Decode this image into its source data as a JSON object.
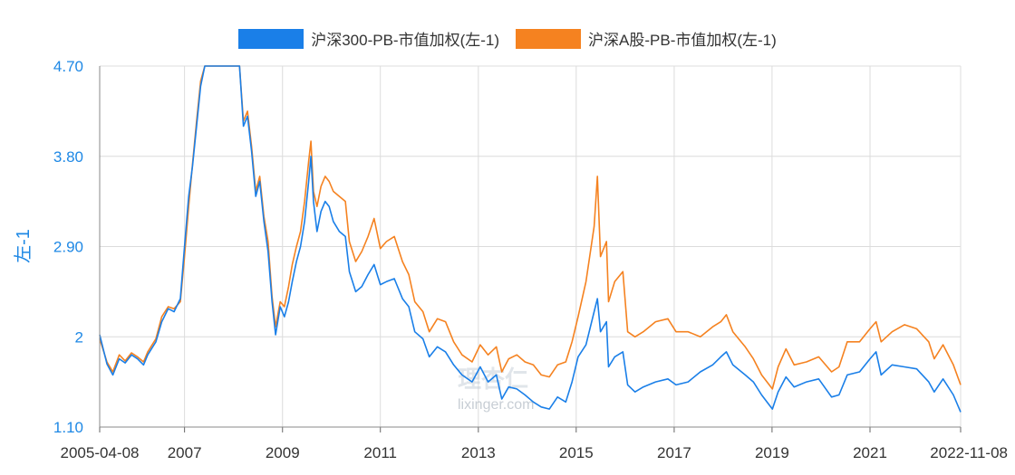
{
  "chart_data": {
    "type": "line",
    "ylabel": "左-1",
    "yticks": [
      "4.70",
      "3.80",
      "2.90",
      "2",
      "1.10"
    ],
    "ytick_values": [
      4.7,
      3.8,
      2.9,
      2.0,
      1.1
    ],
    "ylim": [
      1.1,
      4.7
    ],
    "xlim": [
      "2005-04-08",
      "2022-11-08"
    ],
    "xticks": [
      {
        "label": "2005-04-08",
        "value": "2005-04-08"
      },
      {
        "label": "2007",
        "value": "2007-01-01"
      },
      {
        "label": "2009",
        "value": "2009-01-01"
      },
      {
        "label": "2011",
        "value": "2011-01-01"
      },
      {
        "label": "2013",
        "value": "2013-01-01"
      },
      {
        "label": "2015",
        "value": "2015-01-01"
      },
      {
        "label": "2017",
        "value": "2017-01-01"
      },
      {
        "label": "2019",
        "value": "2019-01-01"
      },
      {
        "label": "2021",
        "value": "2021-01-01"
      },
      {
        "label": "2022-11-08",
        "value": "2022-11-08"
      }
    ],
    "grid": true,
    "legend_position": "top-center",
    "series": [
      {
        "name": "沪深300-PB-市值加权(左-1)",
        "color": "#1a7fe8",
        "points": [
          [
            "2005-04-08",
            2.02
          ],
          [
            "2005-06-01",
            1.73
          ],
          [
            "2005-07-15",
            1.62
          ],
          [
            "2005-09-01",
            1.78
          ],
          [
            "2005-10-15",
            1.74
          ],
          [
            "2005-12-01",
            1.82
          ],
          [
            "2006-01-15",
            1.78
          ],
          [
            "2006-03-01",
            1.72
          ],
          [
            "2006-04-01",
            1.82
          ],
          [
            "2006-06-01",
            1.95
          ],
          [
            "2006-07-15",
            2.15
          ],
          [
            "2006-09-01",
            2.28
          ],
          [
            "2006-10-15",
            2.25
          ],
          [
            "2006-12-01",
            2.38
          ],
          [
            "2007-01-01",
            2.9
          ],
          [
            "2007-02-01",
            3.4
          ],
          [
            "2007-03-01",
            3.7
          ],
          [
            "2007-04-01",
            4.1
          ],
          [
            "2007-05-01",
            4.5
          ],
          [
            "2007-06-01",
            4.7
          ],
          [
            "2007-08-01",
            4.7
          ],
          [
            "2007-10-01",
            4.7
          ],
          [
            "2007-12-01",
            4.7
          ],
          [
            "2008-02-15",
            4.7
          ],
          [
            "2008-03-15",
            4.1
          ],
          [
            "2008-04-15",
            4.2
          ],
          [
            "2008-05-15",
            3.85
          ],
          [
            "2008-06-15",
            3.4
          ],
          [
            "2008-07-15",
            3.55
          ],
          [
            "2008-08-15",
            3.15
          ],
          [
            "2008-09-15",
            2.85
          ],
          [
            "2008-10-15",
            2.35
          ],
          [
            "2008-11-10",
            2.02
          ],
          [
            "2008-12-15",
            2.3
          ],
          [
            "2009-01-15",
            2.2
          ],
          [
            "2009-02-15",
            2.35
          ],
          [
            "2009-03-15",
            2.55
          ],
          [
            "2009-04-15",
            2.75
          ],
          [
            "2009-05-15",
            2.9
          ],
          [
            "2009-06-15",
            3.15
          ],
          [
            "2009-07-15",
            3.55
          ],
          [
            "2009-08-01",
            3.8
          ],
          [
            "2009-08-20",
            3.35
          ],
          [
            "2009-09-15",
            3.05
          ],
          [
            "2009-10-15",
            3.25
          ],
          [
            "2009-11-15",
            3.35
          ],
          [
            "2009-12-15",
            3.3
          ],
          [
            "2010-01-15",
            3.15
          ],
          [
            "2010-03-01",
            3.05
          ],
          [
            "2010-04-15",
            3.0
          ],
          [
            "2010-05-15",
            2.65
          ],
          [
            "2010-07-01",
            2.45
          ],
          [
            "2010-08-15",
            2.5
          ],
          [
            "2010-10-01",
            2.62
          ],
          [
            "2010-11-15",
            2.72
          ],
          [
            "2011-01-01",
            2.52
          ],
          [
            "2011-02-15",
            2.55
          ],
          [
            "2011-04-15",
            2.58
          ],
          [
            "2011-06-15",
            2.38
          ],
          [
            "2011-08-01",
            2.3
          ],
          [
            "2011-09-15",
            2.05
          ],
          [
            "2011-11-15",
            1.98
          ],
          [
            "2012-01-01",
            1.8
          ],
          [
            "2012-03-01",
            1.9
          ],
          [
            "2012-05-01",
            1.85
          ],
          [
            "2012-07-01",
            1.72
          ],
          [
            "2012-09-01",
            1.62
          ],
          [
            "2012-11-15",
            1.55
          ],
          [
            "2013-01-15",
            1.7
          ],
          [
            "2013-03-15",
            1.55
          ],
          [
            "2013-05-15",
            1.62
          ],
          [
            "2013-06-25",
            1.38
          ],
          [
            "2013-08-15",
            1.5
          ],
          [
            "2013-10-15",
            1.48
          ],
          [
            "2013-12-15",
            1.42
          ],
          [
            "2014-02-15",
            1.35
          ],
          [
            "2014-04-15",
            1.3
          ],
          [
            "2014-06-15",
            1.28
          ],
          [
            "2014-08-15",
            1.4
          ],
          [
            "2014-10-15",
            1.35
          ],
          [
            "2014-12-01",
            1.55
          ],
          [
            "2015-01-15",
            1.8
          ],
          [
            "2015-03-15",
            1.92
          ],
          [
            "2015-05-15",
            2.25
          ],
          [
            "2015-06-08",
            2.38
          ],
          [
            "2015-07-01",
            2.05
          ],
          [
            "2015-08-15",
            2.15
          ],
          [
            "2015-08-30",
            1.7
          ],
          [
            "2015-10-15",
            1.8
          ],
          [
            "2015-12-15",
            1.85
          ],
          [
            "2016-01-20",
            1.52
          ],
          [
            "2016-03-15",
            1.45
          ],
          [
            "2016-05-15",
            1.5
          ],
          [
            "2016-08-15",
            1.55
          ],
          [
            "2016-11-15",
            1.58
          ],
          [
            "2017-01-15",
            1.52
          ],
          [
            "2017-04-15",
            1.55
          ],
          [
            "2017-07-15",
            1.65
          ],
          [
            "2017-10-15",
            1.72
          ],
          [
            "2017-12-15",
            1.8
          ],
          [
            "2018-01-25",
            1.85
          ],
          [
            "2018-03-15",
            1.72
          ],
          [
            "2018-06-15",
            1.62
          ],
          [
            "2018-08-15",
            1.55
          ],
          [
            "2018-10-15",
            1.42
          ],
          [
            "2019-01-04",
            1.28
          ],
          [
            "2019-02-15",
            1.45
          ],
          [
            "2019-04-15",
            1.6
          ],
          [
            "2019-06-15",
            1.5
          ],
          [
            "2019-09-15",
            1.55
          ],
          [
            "2019-12-15",
            1.58
          ],
          [
            "2020-03-20",
            1.4
          ],
          [
            "2020-05-15",
            1.42
          ],
          [
            "2020-07-15",
            1.62
          ],
          [
            "2020-10-15",
            1.65
          ],
          [
            "2021-01-01",
            1.78
          ],
          [
            "2021-02-15",
            1.85
          ],
          [
            "2021-03-25",
            1.62
          ],
          [
            "2021-06-15",
            1.72
          ],
          [
            "2021-09-15",
            1.7
          ],
          [
            "2021-12-15",
            1.68
          ],
          [
            "2022-03-15",
            1.55
          ],
          [
            "2022-04-25",
            1.45
          ],
          [
            "2022-06-30",
            1.58
          ],
          [
            "2022-09-15",
            1.42
          ],
          [
            "2022-11-08",
            1.25
          ]
        ]
      },
      {
        "name": "沪深A股-PB-市值加权(左-1)",
        "color": "#f58220",
        "points": [
          [
            "2005-04-08",
            1.98
          ],
          [
            "2005-06-01",
            1.75
          ],
          [
            "2005-07-15",
            1.65
          ],
          [
            "2005-09-01",
            1.82
          ],
          [
            "2005-10-15",
            1.76
          ],
          [
            "2005-12-01",
            1.84
          ],
          [
            "2006-01-15",
            1.8
          ],
          [
            "2006-03-01",
            1.75
          ],
          [
            "2006-04-01",
            1.85
          ],
          [
            "2006-06-01",
            1.98
          ],
          [
            "2006-07-15",
            2.2
          ],
          [
            "2006-09-01",
            2.3
          ],
          [
            "2006-10-15",
            2.28
          ],
          [
            "2006-12-01",
            2.35
          ],
          [
            "2007-01-01",
            2.8
          ],
          [
            "2007-02-01",
            3.3
          ],
          [
            "2007-03-01",
            3.72
          ],
          [
            "2007-04-01",
            4.15
          ],
          [
            "2007-05-01",
            4.55
          ],
          [
            "2007-06-01",
            4.7
          ],
          [
            "2007-08-01",
            4.7
          ],
          [
            "2007-10-01",
            4.7
          ],
          [
            "2007-12-01",
            4.7
          ],
          [
            "2008-02-15",
            4.7
          ],
          [
            "2008-03-15",
            4.15
          ],
          [
            "2008-04-15",
            4.25
          ],
          [
            "2008-05-15",
            3.9
          ],
          [
            "2008-06-15",
            3.45
          ],
          [
            "2008-07-15",
            3.6
          ],
          [
            "2008-08-15",
            3.2
          ],
          [
            "2008-09-15",
            2.95
          ],
          [
            "2008-10-15",
            2.4
          ],
          [
            "2008-11-10",
            2.1
          ],
          [
            "2008-12-15",
            2.35
          ],
          [
            "2009-01-15",
            2.3
          ],
          [
            "2009-02-15",
            2.5
          ],
          [
            "2009-03-15",
            2.72
          ],
          [
            "2009-04-15",
            2.9
          ],
          [
            "2009-05-15",
            3.05
          ],
          [
            "2009-06-15",
            3.35
          ],
          [
            "2009-07-15",
            3.75
          ],
          [
            "2009-08-01",
            3.95
          ],
          [
            "2009-08-20",
            3.45
          ],
          [
            "2009-09-15",
            3.3
          ],
          [
            "2009-10-15",
            3.5
          ],
          [
            "2009-11-15",
            3.6
          ],
          [
            "2009-12-15",
            3.55
          ],
          [
            "2010-01-15",
            3.45
          ],
          [
            "2010-03-01",
            3.4
          ],
          [
            "2010-04-15",
            3.35
          ],
          [
            "2010-05-15",
            2.95
          ],
          [
            "2010-07-01",
            2.75
          ],
          [
            "2010-08-15",
            2.85
          ],
          [
            "2010-10-01",
            3.0
          ],
          [
            "2010-11-15",
            3.18
          ],
          [
            "2011-01-01",
            2.88
          ],
          [
            "2011-02-15",
            2.95
          ],
          [
            "2011-04-15",
            3.0
          ],
          [
            "2011-06-15",
            2.75
          ],
          [
            "2011-08-01",
            2.62
          ],
          [
            "2011-09-15",
            2.35
          ],
          [
            "2011-11-15",
            2.25
          ],
          [
            "2012-01-01",
            2.05
          ],
          [
            "2012-03-01",
            2.18
          ],
          [
            "2012-05-01",
            2.15
          ],
          [
            "2012-07-01",
            1.95
          ],
          [
            "2012-09-01",
            1.82
          ],
          [
            "2012-11-15",
            1.75
          ],
          [
            "2013-01-15",
            1.92
          ],
          [
            "2013-03-15",
            1.82
          ],
          [
            "2013-05-15",
            1.9
          ],
          [
            "2013-06-25",
            1.65
          ],
          [
            "2013-08-15",
            1.78
          ],
          [
            "2013-10-15",
            1.82
          ],
          [
            "2013-12-15",
            1.75
          ],
          [
            "2014-02-15",
            1.72
          ],
          [
            "2014-04-15",
            1.62
          ],
          [
            "2014-06-15",
            1.6
          ],
          [
            "2014-08-15",
            1.72
          ],
          [
            "2014-10-15",
            1.75
          ],
          [
            "2014-12-01",
            1.95
          ],
          [
            "2015-01-15",
            2.2
          ],
          [
            "2015-03-15",
            2.55
          ],
          [
            "2015-05-15",
            3.1
          ],
          [
            "2015-06-08",
            3.6
          ],
          [
            "2015-07-01",
            2.8
          ],
          [
            "2015-08-15",
            2.95
          ],
          [
            "2015-08-30",
            2.35
          ],
          [
            "2015-10-15",
            2.55
          ],
          [
            "2015-12-15",
            2.65
          ],
          [
            "2016-01-20",
            2.05
          ],
          [
            "2016-03-15",
            2.0
          ],
          [
            "2016-05-15",
            2.05
          ],
          [
            "2016-08-15",
            2.15
          ],
          [
            "2016-11-15",
            2.18
          ],
          [
            "2017-01-15",
            2.05
          ],
          [
            "2017-04-15",
            2.05
          ],
          [
            "2017-07-15",
            2.0
          ],
          [
            "2017-10-15",
            2.1
          ],
          [
            "2017-12-15",
            2.15
          ],
          [
            "2018-01-25",
            2.22
          ],
          [
            "2018-03-15",
            2.05
          ],
          [
            "2018-06-15",
            1.9
          ],
          [
            "2018-08-15",
            1.78
          ],
          [
            "2018-10-15",
            1.62
          ],
          [
            "2019-01-04",
            1.48
          ],
          [
            "2019-02-15",
            1.7
          ],
          [
            "2019-04-15",
            1.88
          ],
          [
            "2019-06-15",
            1.72
          ],
          [
            "2019-09-15",
            1.75
          ],
          [
            "2019-12-15",
            1.8
          ],
          [
            "2020-03-20",
            1.65
          ],
          [
            "2020-05-15",
            1.7
          ],
          [
            "2020-07-15",
            1.95
          ],
          [
            "2020-10-15",
            1.95
          ],
          [
            "2021-01-01",
            2.08
          ],
          [
            "2021-02-15",
            2.15
          ],
          [
            "2021-03-25",
            1.95
          ],
          [
            "2021-06-15",
            2.05
          ],
          [
            "2021-09-15",
            2.12
          ],
          [
            "2021-12-15",
            2.08
          ],
          [
            "2022-03-15",
            1.95
          ],
          [
            "2022-04-25",
            1.78
          ],
          [
            "2022-06-30",
            1.92
          ],
          [
            "2022-09-15",
            1.72
          ],
          [
            "2022-11-08",
            1.52
          ]
        ]
      }
    ]
  },
  "watermark": {
    "brand": "理杏仁",
    "domain": "lixinger.com"
  }
}
